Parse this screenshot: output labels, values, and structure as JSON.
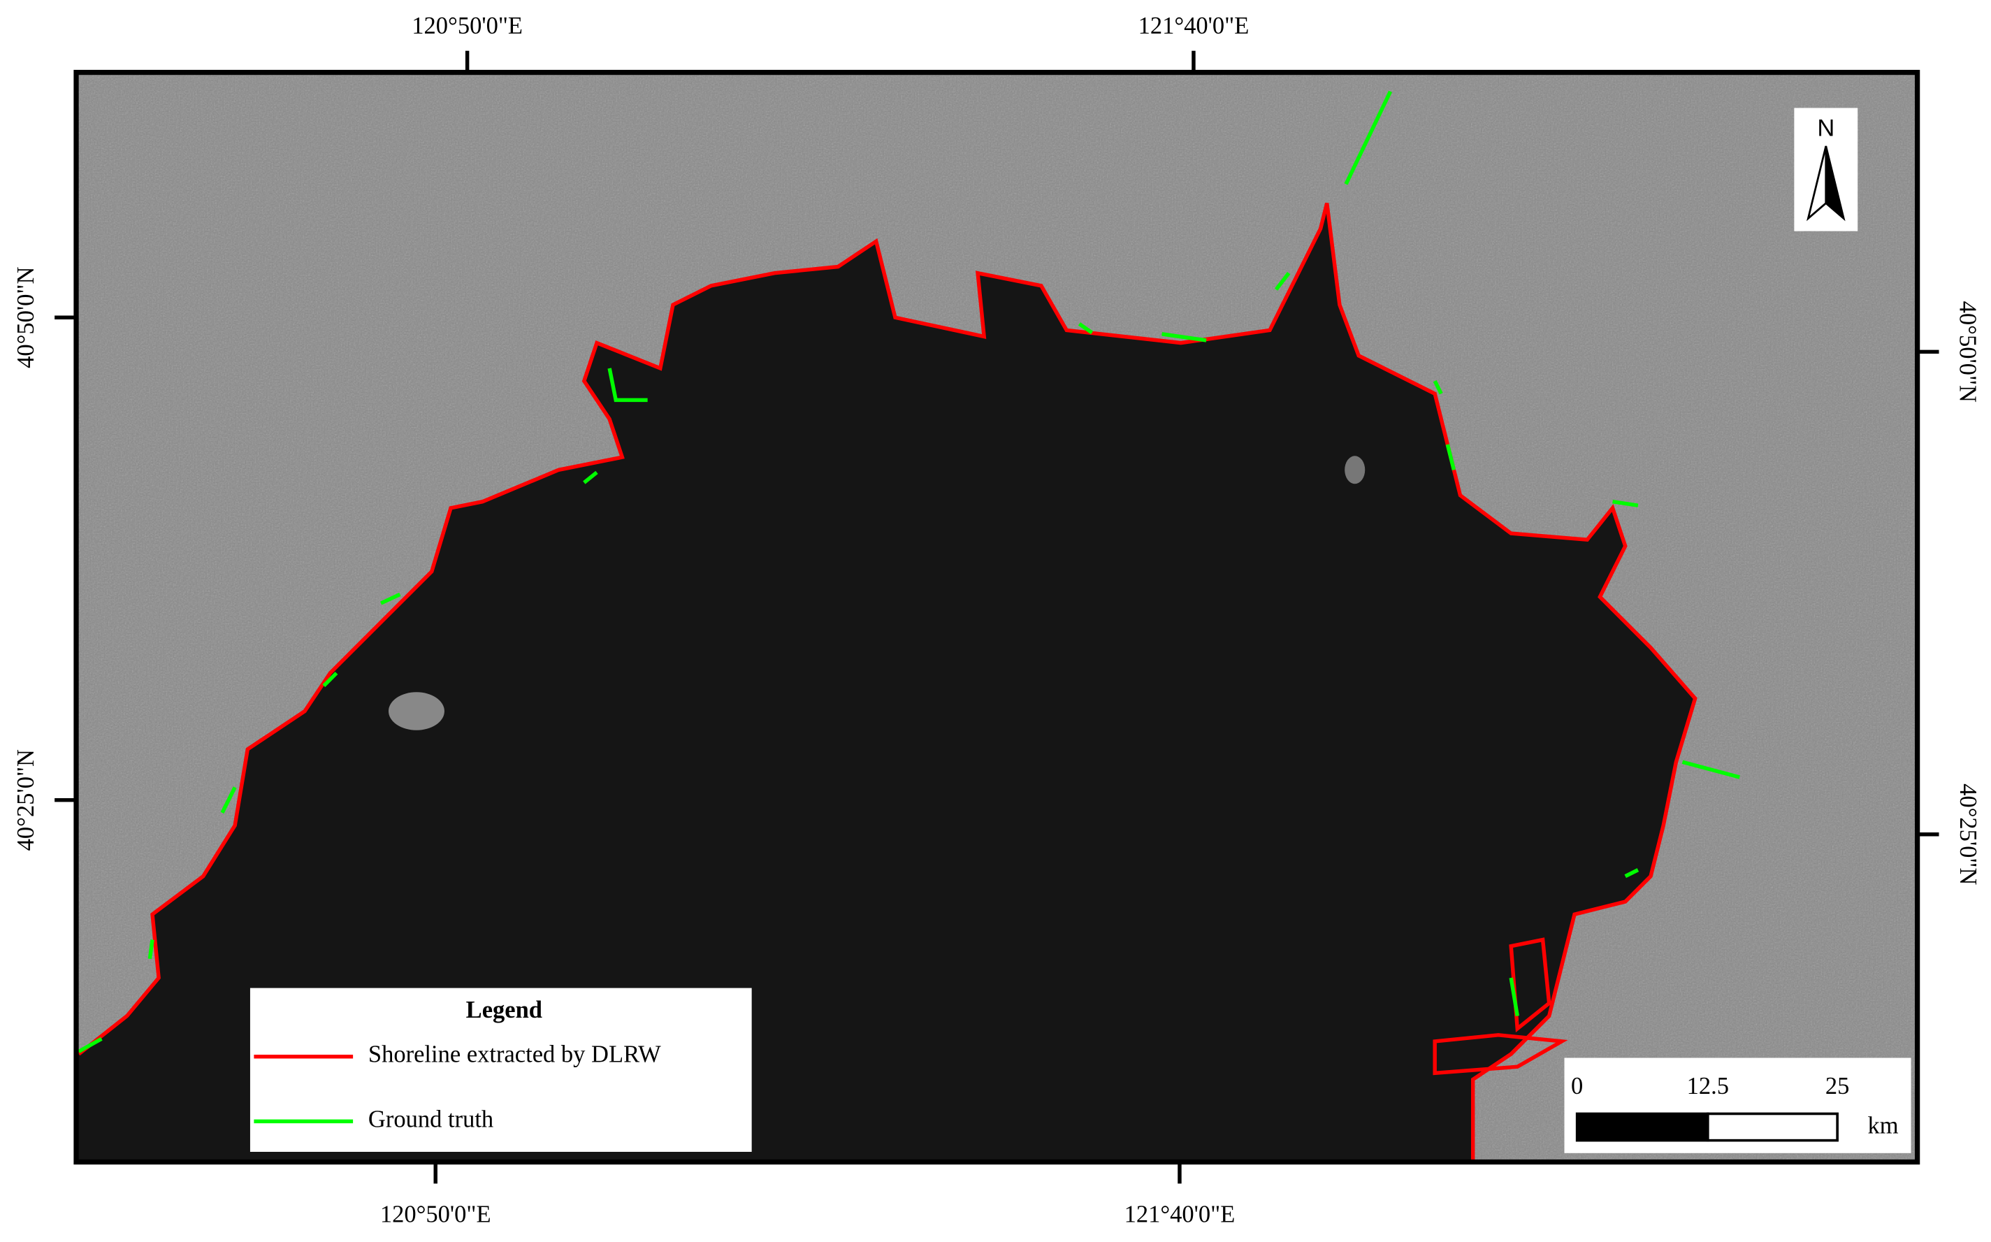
{
  "axes": {
    "top": [
      "120°50'0\"E",
      "121°40'0\"E"
    ],
    "bottom": [
      "120°50'0\"E",
      "121°40'0\"E"
    ],
    "left": [
      "40°50'0\"N",
      "40°25'0\"N"
    ],
    "right": [
      "40°50'0\"N",
      "40°25'0\"N"
    ]
  },
  "legend": {
    "title": "Legend",
    "items": [
      {
        "label": "Shoreline extracted by DLRW",
        "color": "#ff0000"
      },
      {
        "label": "Ground truth",
        "color": "#00ff00"
      }
    ]
  },
  "scale_bar": {
    "ticks": [
      "0",
      "12.5",
      "25"
    ],
    "unit": "km"
  },
  "north_arrow": "N"
}
